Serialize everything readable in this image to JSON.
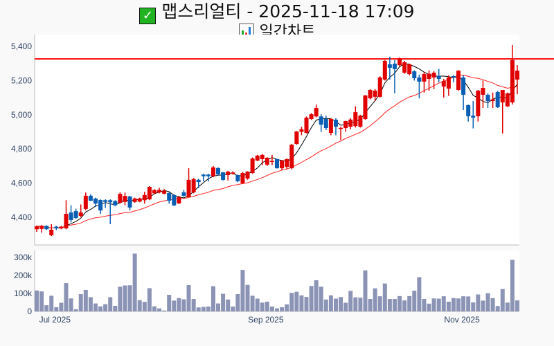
{
  "title": {
    "icon": "check-mark-icon",
    "text": "맵스리얼티 - 2025-11-18 17:09"
  },
  "subtitle": {
    "icon": "bar-chart-icon",
    "text": "일간차트"
  },
  "colors": {
    "up": "#e00000",
    "down": "#0a5fb4",
    "ma_short": "#000000",
    "ma_long": "#ff2020",
    "ref_line": "#ff0000",
    "volume": "#8c94b6"
  },
  "chart_data": [
    {
      "type": "candlestick",
      "title": "일간차트",
      "ylim": [
        4238,
        5469
      ],
      "yticks": [
        {
          "value": 4400,
          "label": "4,400"
        },
        {
          "value": 4600,
          "label": "4,600"
        },
        {
          "value": 4800,
          "label": "4,800"
        },
        {
          "value": 5000,
          "label": "5,000"
        },
        {
          "value": 5200,
          "label": "5,200"
        },
        {
          "value": 5400,
          "label": "5,400"
        }
      ],
      "reference_line": 5327,
      "moving_averages": [
        {
          "name": "MA5",
          "period": 5
        },
        {
          "name": "MA20",
          "period": 20
        }
      ],
      "ohlc": [
        [
          4330,
          4352,
          4315,
          4347
        ],
        [
          4332,
          4355,
          4310,
          4350
        ],
        [
          4350,
          4352,
          4325,
          4330
        ],
        [
          4295,
          4360,
          4290,
          4327
        ],
        [
          4345,
          4350,
          4325,
          4335
        ],
        [
          4335,
          4350,
          4330,
          4345
        ],
        [
          4335,
          4500,
          4330,
          4420
        ],
        [
          4428,
          4470,
          4370,
          4384
        ],
        [
          4436,
          4450,
          4390,
          4396
        ],
        [
          4408,
          4475,
          4400,
          4428
        ],
        [
          4449,
          4545,
          4440,
          4526
        ],
        [
          4526,
          4535,
          4495,
          4497
        ],
        [
          4510,
          4515,
          4460,
          4480
        ],
        [
          4501,
          4505,
          4420,
          4440
        ],
        [
          4500,
          4505,
          4455,
          4490
        ],
        [
          4500,
          4505,
          4360,
          4488
        ],
        [
          4495,
          4500,
          4465,
          4470
        ],
        [
          4485,
          4545,
          4480,
          4537
        ],
        [
          4490,
          4545,
          4470,
          4525
        ],
        [
          4522,
          4525,
          4440,
          4457
        ],
        [
          4490,
          4515,
          4485,
          4510
        ],
        [
          4492,
          4515,
          4488,
          4510
        ],
        [
          4500,
          4550,
          4480,
          4530
        ],
        [
          4505,
          4582,
          4500,
          4578
        ],
        [
          4540,
          4565,
          4535,
          4560
        ],
        [
          4545,
          4572,
          4540,
          4560
        ],
        [
          4538,
          4565,
          4535,
          4555
        ],
        [
          4542,
          4545,
          4480,
          4497
        ],
        [
          4530,
          4535,
          4465,
          4470
        ],
        [
          4481,
          4525,
          4478,
          4518
        ],
        [
          4546,
          4560,
          4520,
          4526
        ],
        [
          4518,
          4687,
          4515,
          4619
        ],
        [
          4546,
          4630,
          4540,
          4623
        ],
        [
          4619,
          4625,
          4570,
          4606
        ],
        [
          4650,
          4655,
          4610,
          4640
        ],
        [
          4650,
          4655,
          4610,
          4640
        ],
        [
          4640,
          4700,
          4635,
          4692
        ],
        [
          4688,
          4692,
          4645,
          4651
        ],
        [
          4663,
          4665,
          4615,
          4619
        ],
        [
          4647,
          4672,
          4615,
          4667
        ],
        [
          4655,
          4670,
          4650,
          4662
        ],
        [
          4647,
          4650,
          4605,
          4611
        ],
        [
          4599,
          4665,
          4595,
          4659
        ],
        [
          4627,
          4670,
          4620,
          4667
        ],
        [
          4659,
          4750,
          4655,
          4744
        ],
        [
          4732,
          4765,
          4728,
          4761
        ],
        [
          4740,
          4770,
          4705,
          4765
        ],
        [
          4708,
          4752,
          4700,
          4748
        ],
        [
          4725,
          4765,
          4705,
          4730
        ],
        [
          4740,
          4742,
          4685,
          4687
        ],
        [
          4687,
          4735,
          4675,
          4732
        ],
        [
          4695,
          4745,
          4680,
          4740
        ],
        [
          4687,
          4830,
          4680,
          4825
        ],
        [
          4829,
          4905,
          4825,
          4902
        ],
        [
          4900,
          4930,
          4880,
          4915
        ],
        [
          4894,
          4990,
          4890,
          4983
        ],
        [
          4975,
          5010,
          4970,
          5003
        ],
        [
          4990,
          5060,
          4985,
          5040
        ],
        [
          4990,
          5003,
          4900,
          4942
        ],
        [
          4975,
          4995,
          4910,
          4922
        ],
        [
          4894,
          4980,
          4880,
          4975
        ],
        [
          4971,
          4980,
          4880,
          4930
        ],
        [
          4917,
          4930,
          4853,
          4923
        ],
        [
          4922,
          4965,
          4900,
          4963
        ],
        [
          4930,
          4980,
          4915,
          4972
        ],
        [
          4934,
          5050,
          4925,
          5015
        ],
        [
          4930,
          5000,
          4925,
          4995
        ],
        [
          4975,
          5115,
          4970,
          5113
        ],
        [
          5096,
          5150,
          5090,
          5145
        ],
        [
          5105,
          5150,
          5080,
          5141
        ],
        [
          5105,
          5225,
          5100,
          5218
        ],
        [
          5206,
          5320,
          5200,
          5315
        ],
        [
          5295,
          5340,
          5206,
          5275
        ],
        [
          5299,
          5320,
          5125,
          5267
        ],
        [
          5290,
          5335,
          5285,
          5330
        ],
        [
          5246,
          5315,
          5240,
          5307
        ],
        [
          5238,
          5300,
          5230,
          5295
        ],
        [
          5254,
          5260,
          5200,
          5214
        ],
        [
          5218,
          5235,
          5096,
          5194
        ],
        [
          5194,
          5250,
          5130,
          5238
        ],
        [
          5210,
          5260,
          5140,
          5240
        ],
        [
          5218,
          5255,
          5150,
          5246
        ],
        [
          5226,
          5268,
          5190,
          5210
        ],
        [
          5165,
          5210,
          5100,
          5198
        ],
        [
          5153,
          5230,
          5110,
          5218
        ],
        [
          5226,
          5232,
          5190,
          5218
        ],
        [
          5145,
          5262,
          5140,
          5258
        ],
        [
          5218,
          5230,
          5028,
          5117
        ],
        [
          5056,
          5060,
          4960,
          4991
        ],
        [
          4995,
          5080,
          4920,
          4983
        ],
        [
          4991,
          5145,
          4960,
          5141
        ],
        [
          5117,
          5200,
          5040,
          5157
        ],
        [
          5117,
          5125,
          5040,
          5080
        ],
        [
          5080,
          5130,
          5040,
          5090
        ],
        [
          5133,
          5140,
          5040,
          5044
        ],
        [
          5072,
          5145,
          4890,
          5145
        ],
        [
          5049,
          5130,
          5045,
          5125
        ],
        [
          5072,
          5408,
          5060,
          5320
        ],
        [
          5206,
          5290,
          5120,
          5258
        ]
      ]
    },
    {
      "type": "bar",
      "title": "volume",
      "ylim": [
        0,
        338000
      ],
      "yticks": [
        {
          "value": 0,
          "label": "0"
        },
        {
          "value": 100000,
          "label": "100k"
        },
        {
          "value": 200000,
          "label": "200k"
        },
        {
          "value": 300000,
          "label": "300k"
        }
      ],
      "xticks": [
        {
          "index": 4,
          "label": "Jul 2025"
        },
        {
          "index": 47,
          "label": "Sep 2025"
        },
        {
          "index": 87,
          "label": "Nov 2025"
        }
      ],
      "values_k": [
        116,
        111,
        34,
        87,
        23,
        48,
        157,
        72,
        12,
        96,
        119,
        79,
        44,
        28,
        40,
        79,
        31,
        137,
        144,
        145,
        321,
        62,
        53,
        129,
        28,
        17,
        5,
        92,
        60,
        74,
        67,
        146,
        69,
        22,
        25,
        27,
        140,
        44,
        98,
        66,
        27,
        96,
        230,
        147,
        87,
        71,
        49,
        54,
        27,
        17,
        23,
        39,
        103,
        109,
        89,
        80,
        141,
        173,
        137,
        66,
        89,
        71,
        80,
        48,
        114,
        78,
        76,
        228,
        69,
        128,
        84,
        155,
        69,
        69,
        85,
        61,
        85,
        115,
        190,
        69,
        43,
        72,
        71,
        84,
        54,
        74,
        72,
        84,
        83,
        50,
        94,
        60,
        101,
        74,
        30,
        124,
        49,
        286,
        61
      ]
    }
  ]
}
